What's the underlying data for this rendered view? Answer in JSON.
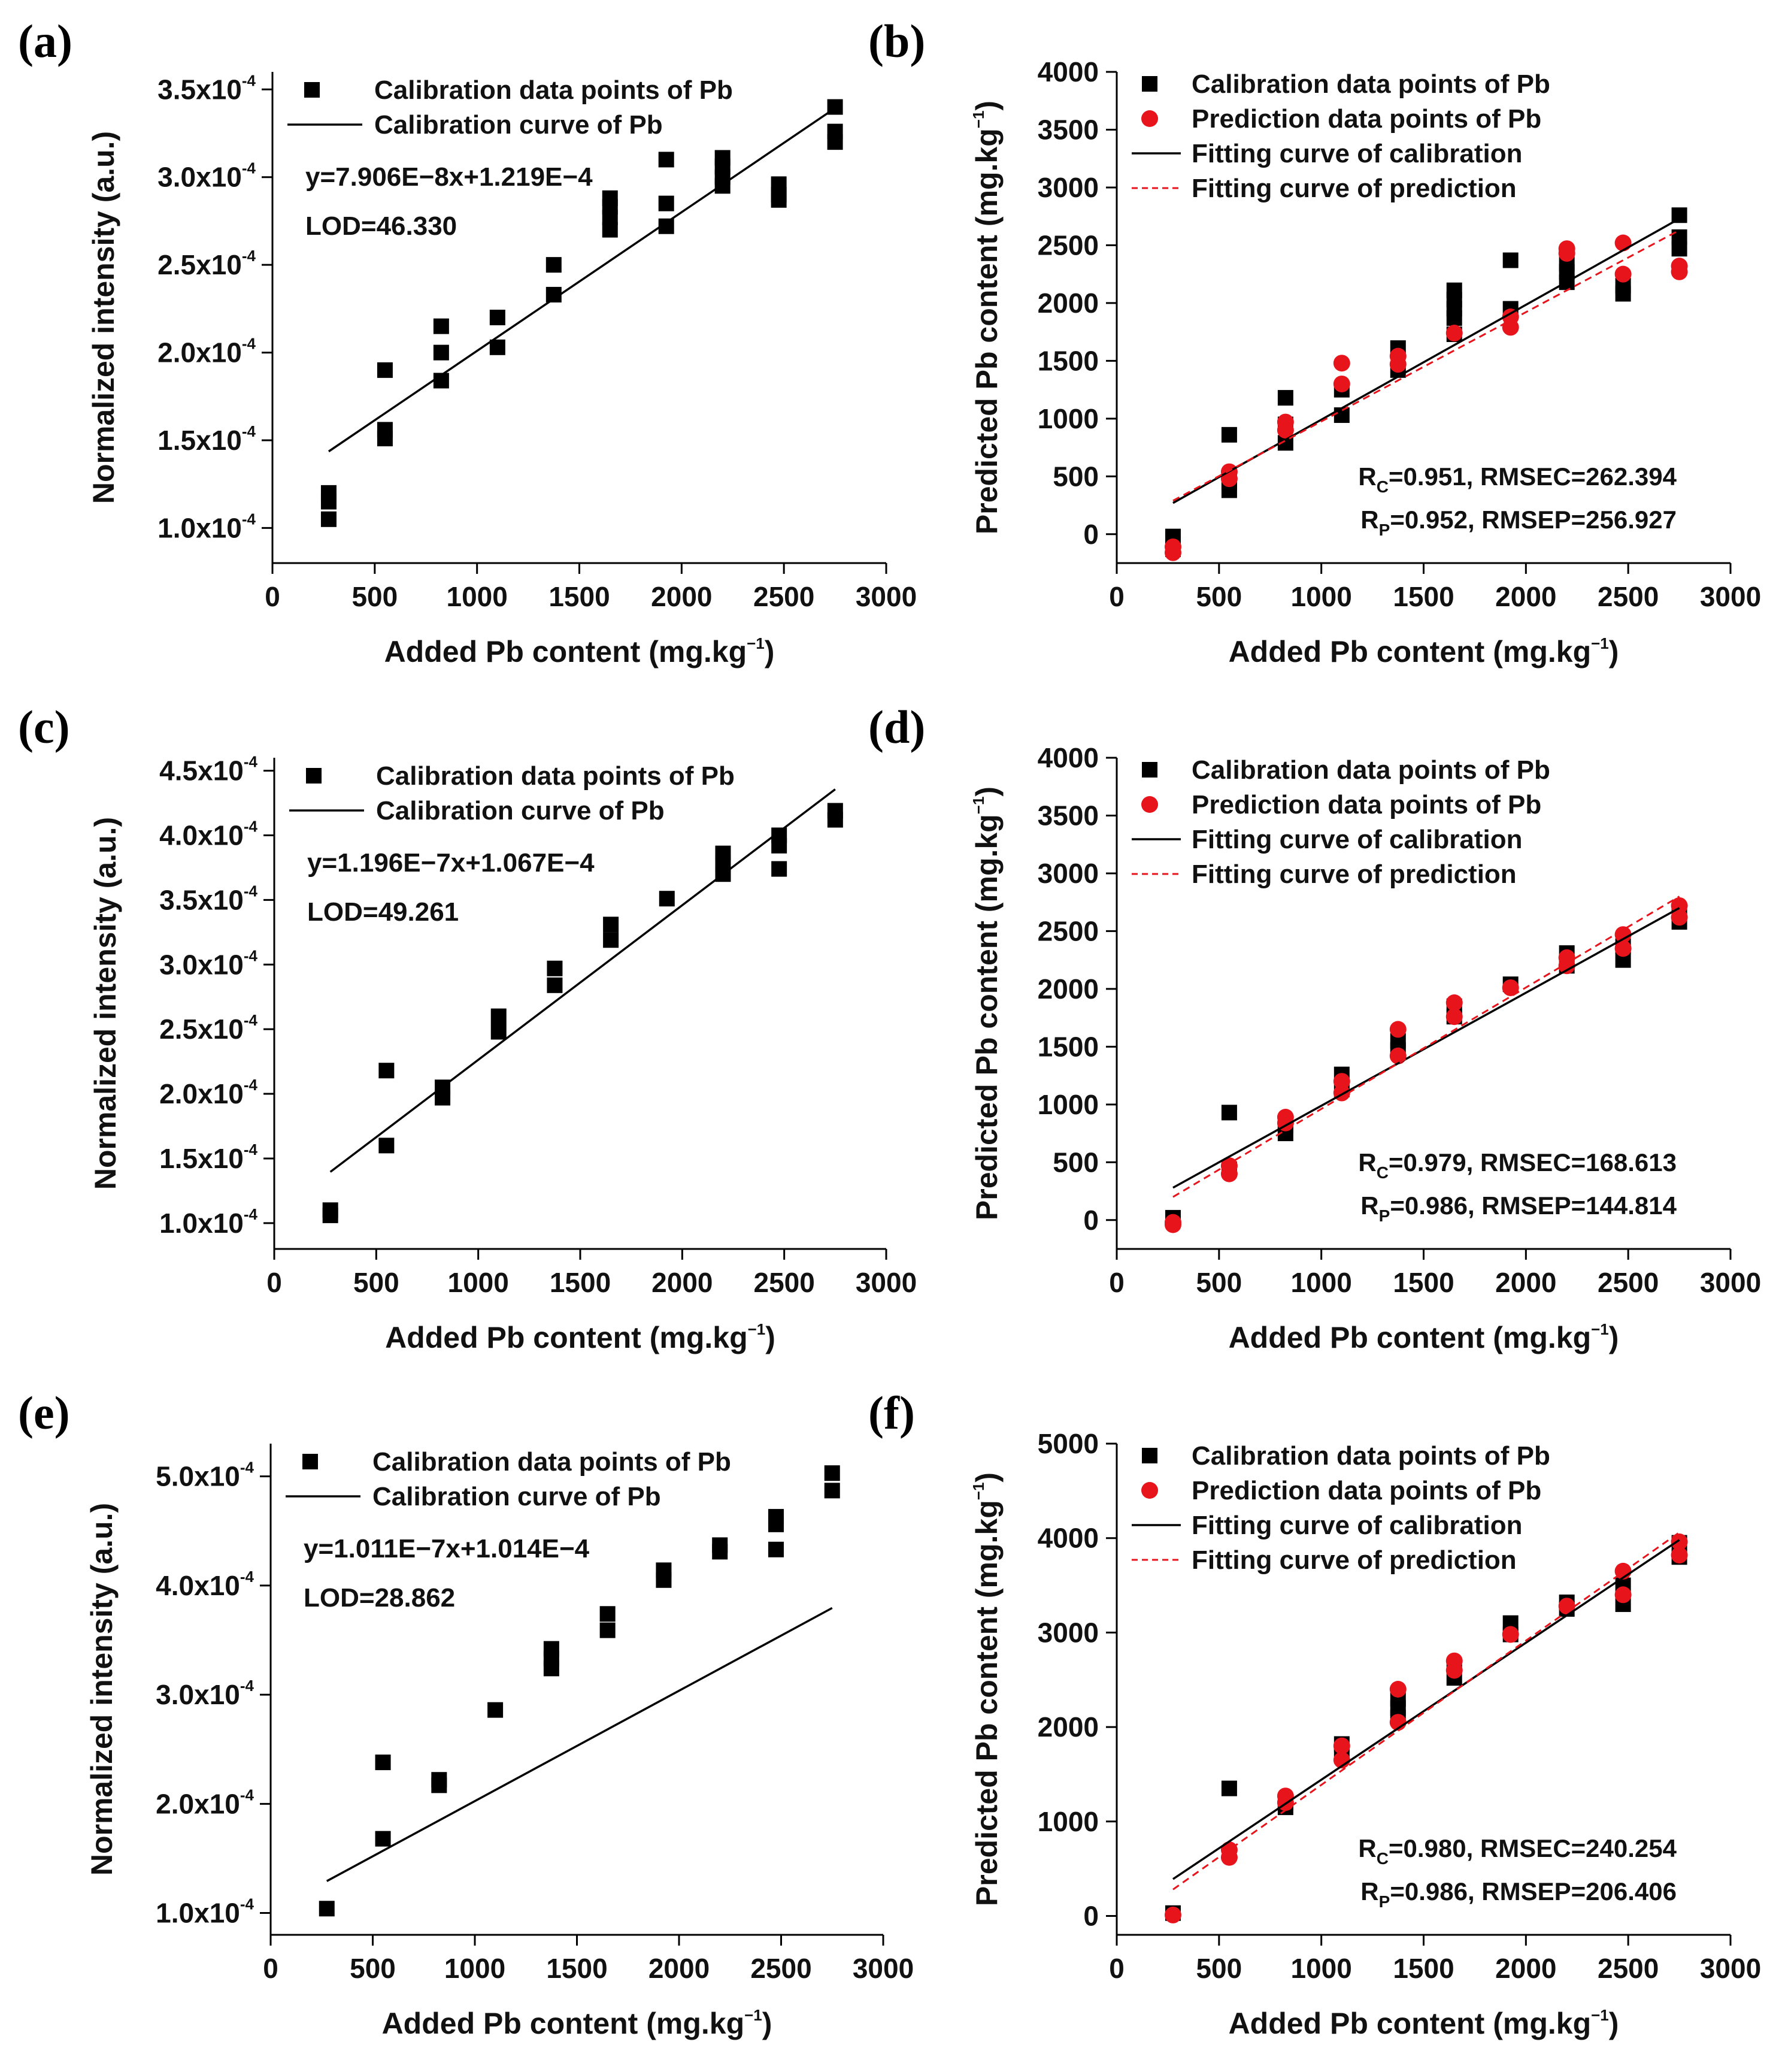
{
  "figure": {
    "panels": [
      {
        "label": "(a)",
        "kind": "calibration",
        "xlabel": "Added Pb content (mg.kg",
        "xlabel_sup": "−1",
        "xlabel_end": ")",
        "ylabel": "Normalized intensity (a.u.)",
        "legend": [
          "Calibration data points of Pb",
          "Calibration curve of Pb"
        ],
        "annotations": [
          "y=7.906E−8x+1.219E−4",
          "LOD=46.330"
        ]
      },
      {
        "label": "(b)",
        "kind": "prediction",
        "xlabel": "Added Pb content (mg.kg",
        "xlabel_sup": "−1",
        "xlabel_end": ")",
        "ylabel": "Predicted Pb content (mg.kg",
        "ylabel_sup": "−1",
        "ylabel_end": ")",
        "legend": [
          "Calibration data points of Pb",
          "Prediction data points of Pb",
          "Fitting curve of calibration",
          "Fitting curve of prediction"
        ],
        "annotations": [
          "R",
          "C",
          "=0.951, RMSEC=262.394",
          "R",
          "P",
          "=0.952, RMSEP=256.927"
        ]
      },
      {
        "label": "(c)",
        "kind": "calibration",
        "xlabel": "Added Pb content (mg.kg",
        "xlabel_sup": "−1",
        "xlabel_end": ")",
        "ylabel": "Normalized intensity (a.u.)",
        "legend": [
          "Calibration data points of Pb",
          "Calibration curve of Pb"
        ],
        "annotations": [
          "y=1.196E−7x+1.067E−4",
          "LOD=49.261"
        ]
      },
      {
        "label": "(d)",
        "kind": "prediction",
        "xlabel": "Added Pb content (mg.kg",
        "xlabel_sup": "−1",
        "xlabel_end": ")",
        "ylabel": "Predicted Pb content (mg.kg",
        "ylabel_sup": "−1",
        "ylabel_end": ")",
        "legend": [
          "Calibration data points of Pb",
          "Prediction data points of Pb",
          "Fitting curve of calibration",
          "Fitting curve of prediction"
        ],
        "annotations": [
          "R",
          "C",
          "=0.979, RMSEC=168.613",
          "R",
          "P",
          "=0.986, RMSEP=144.814"
        ]
      },
      {
        "label": "(e)",
        "kind": "calibration",
        "xlabel": "Added Pb content (mg.kg",
        "xlabel_sup": "−1",
        "xlabel_end": ")",
        "ylabel": "Normalized intensity (a.u.)",
        "legend": [
          "Calibration data points of Pb",
          "Calibration curve of Pb"
        ],
        "annotations": [
          "y=1.011E−7x+1.014E−4",
          "LOD=28.862"
        ]
      },
      {
        "label": "(f)",
        "kind": "prediction",
        "xlabel": "Added Pb content (mg.kg",
        "xlabel_sup": "−1",
        "xlabel_end": ")",
        "ylabel": "Predicted Pb content (mg.kg",
        "ylabel_sup": "−1",
        "ylabel_end": ")",
        "legend": [
          "Calibration data points of Pb",
          "Prediction data points of Pb",
          "Fitting curve of calibration",
          "Fitting curve of prediction"
        ],
        "annotations": [
          "R",
          "C",
          "=0.980, RMSEC=240.254",
          "R",
          "P",
          "=0.986, RMSEP=206.406"
        ]
      }
    ]
  },
  "colors": {
    "calibration": "#000000",
    "prediction": "#e8141c"
  },
  "chart_data": [
    {
      "type": "scatter",
      "label": "(a)",
      "xlabel": "Added Pb content (mg.kg⁻¹)",
      "ylabel": "Normalized intensity (a.u.)",
      "xlim": [
        0,
        3000
      ],
      "ylim": [
        8e-05,
        0.00036
      ],
      "xticks": [
        0,
        500,
        1000,
        1500,
        2000,
        2500,
        3000
      ],
      "yticks": [
        0.0001,
        0.00015,
        0.0002,
        0.00025,
        0.0003,
        0.00035
      ],
      "ytick_mantissa": [
        "1.0",
        "1.5",
        "2.0",
        "2.5",
        "3.0",
        "3.5"
      ],
      "ytick_exp": "-4",
      "series": [
        {
          "name": "Calibration data points of Pb",
          "marker": "square",
          "x": [
            275,
            275,
            275,
            550,
            550,
            550,
            825,
            825,
            825,
            1100,
            1100,
            1375,
            1375,
            1650,
            1650,
            1650,
            1650,
            1925,
            1925,
            1925,
            2200,
            2200,
            2200,
            2200,
            2475,
            2475,
            2475,
            2750,
            2750,
            2750
          ],
          "y": [
            0.000105,
            0.000115,
            0.00012,
            0.000151,
            0.000156,
            0.00019,
            0.000184,
            0.0002,
            0.000215,
            0.000203,
            0.00022,
            0.000233,
            0.00025,
            0.00027,
            0.000277,
            0.000283,
            0.000288,
            0.000272,
            0.000285,
            0.00031,
            0.000295,
            0.0003,
            0.000306,
            0.000311,
            0.000287,
            0.00029,
            0.000296,
            0.00032,
            0.000326,
            0.00034
          ]
        },
        {
          "name": "Calibration curve of Pb",
          "marker": "line",
          "slope": 7.906e-08,
          "intercept": 0.0001219,
          "x_range": [
            275,
            2750
          ]
        }
      ]
    },
    {
      "type": "scatter",
      "label": "(b)",
      "xlabel": "Added Pb content (mg.kg⁻¹)",
      "ylabel": "Predicted Pb content (mg.kg⁻¹)",
      "xlim": [
        0,
        3000
      ],
      "ylim": [
        -250,
        4000
      ],
      "xticks": [
        0,
        500,
        1000,
        1500,
        2000,
        2500,
        3000
      ],
      "yticks": [
        0,
        500,
        1000,
        1500,
        2000,
        2500,
        3000,
        3500,
        4000
      ],
      "series": [
        {
          "name": "Calibration data points of Pb",
          "marker": "square",
          "x": [
            275,
            275,
            550,
            550,
            550,
            825,
            825,
            825,
            1100,
            1100,
            1375,
            1375,
            1650,
            1650,
            1650,
            1650,
            1650,
            1925,
            1925,
            2200,
            2200,
            2200,
            2475,
            2475,
            2750,
            2750,
            2750
          ],
          "y": [
            -20,
            -130,
            380,
            450,
            860,
            790,
            950,
            1180,
            1030,
            1250,
            1420,
            1610,
            1730,
            1870,
            1950,
            2030,
            2110,
            1950,
            2370,
            2180,
            2270,
            2340,
            2080,
            2150,
            2470,
            2570,
            2760
          ]
        },
        {
          "name": "Prediction data points of Pb",
          "marker": "circle",
          "x": [
            275,
            275,
            550,
            550,
            825,
            825,
            1100,
            1100,
            1375,
            1375,
            1650,
            1925,
            1925,
            2200,
            2200,
            2475,
            2475,
            2750,
            2750
          ],
          "y": [
            -110,
            -160,
            480,
            540,
            900,
            970,
            1300,
            1480,
            1470,
            1540,
            1740,
            1790,
            1880,
            2430,
            2470,
            2250,
            2520,
            2270,
            2320
          ]
        },
        {
          "name": "Fitting curve of calibration",
          "marker": "line",
          "endpoints_x": [
            275,
            2750
          ],
          "endpoints_y": [
            270,
            2730
          ]
        },
        {
          "name": "Fitting curve of prediction",
          "marker": "dashed-line",
          "endpoints_x": [
            275,
            2750
          ],
          "endpoints_y": [
            290,
            2630
          ]
        }
      ]
    },
    {
      "type": "scatter",
      "label": "(c)",
      "xlabel": "Added Pb content (mg.kg⁻¹)",
      "ylabel": "Normalized intensity (a.u.)",
      "xlim": [
        0,
        3000
      ],
      "ylim": [
        8e-05,
        0.00046
      ],
      "xticks": [
        0,
        500,
        1000,
        1500,
        2000,
        2500,
        3000
      ],
      "yticks": [
        0.0001,
        0.00015,
        0.0002,
        0.00025,
        0.0003,
        0.00035,
        0.0004,
        0.00045
      ],
      "ytick_mantissa": [
        "1.0",
        "1.5",
        "2.0",
        "2.5",
        "3.0",
        "3.5",
        "4.0",
        "4.5"
      ],
      "ytick_exp": "-4",
      "series": [
        {
          "name": "Calibration data points of Pb",
          "marker": "square",
          "x": [
            275,
            275,
            550,
            550,
            825,
            825,
            1100,
            1100,
            1375,
            1375,
            1650,
            1650,
            1925,
            2200,
            2200,
            2200,
            2475,
            2475,
            2475,
            2750,
            2750
          ],
          "y": [
            0.000106,
            0.00011,
            0.00016,
            0.000218,
            0.000197,
            0.000205,
            0.000248,
            0.00026,
            0.000284,
            0.000297,
            0.000319,
            0.000331,
            0.000351,
            0.00037,
            0.000378,
            0.000386,
            0.000374,
            0.000392,
            0.0004,
            0.000412,
            0.000419
          ]
        },
        {
          "name": "Calibration curve of Pb",
          "marker": "line",
          "slope": 1.196e-07,
          "intercept": 0.0001067,
          "x_range": [
            275,
            2750
          ]
        }
      ]
    },
    {
      "type": "scatter",
      "label": "(d)",
      "xlabel": "Added Pb content (mg.kg⁻¹)",
      "ylabel": "Predicted Pb content (mg.kg⁻¹)",
      "xlim": [
        0,
        3000
      ],
      "ylim": [
        -250,
        4000
      ],
      "xticks": [
        0,
        500,
        1000,
        1500,
        2000,
        2500,
        3000
      ],
      "yticks": [
        0,
        500,
        1000,
        1500,
        2000,
        2500,
        3000,
        3500,
        4000
      ],
      "series": [
        {
          "name": "Calibration data points of Pb",
          "marker": "square",
          "x": [
            275,
            550,
            550,
            825,
            825,
            1100,
            1100,
            1375,
            1375,
            1650,
            1650,
            1925,
            2200,
            2200,
            2475,
            2475,
            2750,
            2750
          ],
          "y": [
            20,
            440,
            930,
            750,
            820,
            1130,
            1260,
            1470,
            1550,
            1760,
            1850,
            2040,
            2200,
            2310,
            2250,
            2370,
            2580,
            2650
          ]
        },
        {
          "name": "Prediction data points of Pb",
          "marker": "circle",
          "x": [
            275,
            275,
            550,
            550,
            825,
            825,
            1100,
            1100,
            1375,
            1375,
            1650,
            1650,
            1925,
            2200,
            2200,
            2475,
            2475,
            2750,
            2750
          ],
          "y": [
            -20,
            -40,
            400,
            470,
            840,
            890,
            1100,
            1200,
            1420,
            1650,
            1760,
            1880,
            2010,
            2200,
            2270,
            2350,
            2470,
            2620,
            2720
          ]
        },
        {
          "name": "Fitting curve of calibration",
          "marker": "line",
          "endpoints_x": [
            275,
            2750
          ],
          "endpoints_y": [
            280,
            2700
          ]
        },
        {
          "name": "Fitting curve of prediction",
          "marker": "dashed-line",
          "endpoints_x": [
            275,
            2750
          ],
          "endpoints_y": [
            200,
            2800
          ]
        }
      ]
    },
    {
      "type": "scatter",
      "label": "(e)",
      "xlabel": "Added Pb content (mg.kg⁻¹)",
      "ylabel": "Normalized intensity (a.u.)",
      "xlim": [
        0,
        3000
      ],
      "ylim": [
        8e-05,
        0.00053
      ],
      "xticks": [
        0,
        500,
        1000,
        1500,
        2000,
        2500,
        3000
      ],
      "yticks": [
        0.0001,
        0.0002,
        0.0003,
        0.0004,
        0.0005
      ],
      "ytick_mantissa": [
        "1.0",
        "2.0",
        "3.0",
        "4.0",
        "5.0"
      ],
      "ytick_exp": "-4",
      "series": [
        {
          "name": "Calibration data points of Pb",
          "marker": "square",
          "x": [
            275,
            550,
            550,
            825,
            825,
            1100,
            1375,
            1375,
            1375,
            1650,
            1650,
            1925,
            1925,
            2200,
            2200,
            2475,
            2475,
            2475,
            2750,
            2750
          ],
          "y": [
            0.000104,
            0.000168,
            0.000238,
            0.000217,
            0.000222,
            0.000286,
            0.000324,
            0.000333,
            0.000342,
            0.000359,
            0.000374,
            0.000405,
            0.000414,
            0.000431,
            0.000437,
            0.000433,
            0.000456,
            0.000463,
            0.000487,
            0.000503
          ]
        },
        {
          "name": "Calibration curve of Pb",
          "marker": "line",
          "slope": 1.011e-07,
          "intercept": 0.0001014,
          "x_range": [
            275,
            2750
          ]
        }
      ]
    },
    {
      "type": "scatter",
      "label": "(f)",
      "xlabel": "Added Pb content (mg.kg⁻¹)",
      "ylabel": "Predicted Pb content (mg.kg⁻¹)",
      "xlim": [
        0,
        3000
      ],
      "ylim": [
        -200,
        5000
      ],
      "xticks": [
        0,
        500,
        1000,
        1500,
        2000,
        2500,
        3000
      ],
      "yticks": [
        0,
        1000,
        2000,
        3000,
        4000,
        5000
      ],
      "series": [
        {
          "name": "Calibration data points of Pb",
          "marker": "square",
          "x": [
            275,
            550,
            825,
            825,
            1100,
            1100,
            1375,
            1375,
            1375,
            1650,
            1650,
            1925,
            1925,
            2200,
            2200,
            2475,
            2475,
            2750,
            2750
          ],
          "y": [
            30,
            1350,
            1150,
            1200,
            1700,
            1820,
            2100,
            2200,
            2300,
            2520,
            2650,
            2980,
            3100,
            3250,
            3320,
            3300,
            3500,
            3800,
            3950
          ]
        },
        {
          "name": "Prediction data points of Pb",
          "marker": "circle",
          "x": [
            275,
            550,
            550,
            825,
            825,
            1100,
            1100,
            1375,
            1375,
            1650,
            1650,
            1925,
            2200,
            2475,
            2475,
            2750,
            2750
          ],
          "y": [
            10,
            620,
            700,
            1200,
            1270,
            1650,
            1800,
            2050,
            2400,
            2600,
            2700,
            2980,
            3280,
            3400,
            3650,
            3820,
            3960
          ]
        },
        {
          "name": "Fitting curve of calibration",
          "marker": "line",
          "endpoints_x": [
            275,
            2750
          ],
          "endpoints_y": [
            390,
            3980
          ]
        },
        {
          "name": "Fitting curve of prediction",
          "marker": "dashed-line",
          "endpoints_x": [
            275,
            2750
          ],
          "endpoints_y": [
            280,
            4060
          ]
        }
      ]
    }
  ]
}
